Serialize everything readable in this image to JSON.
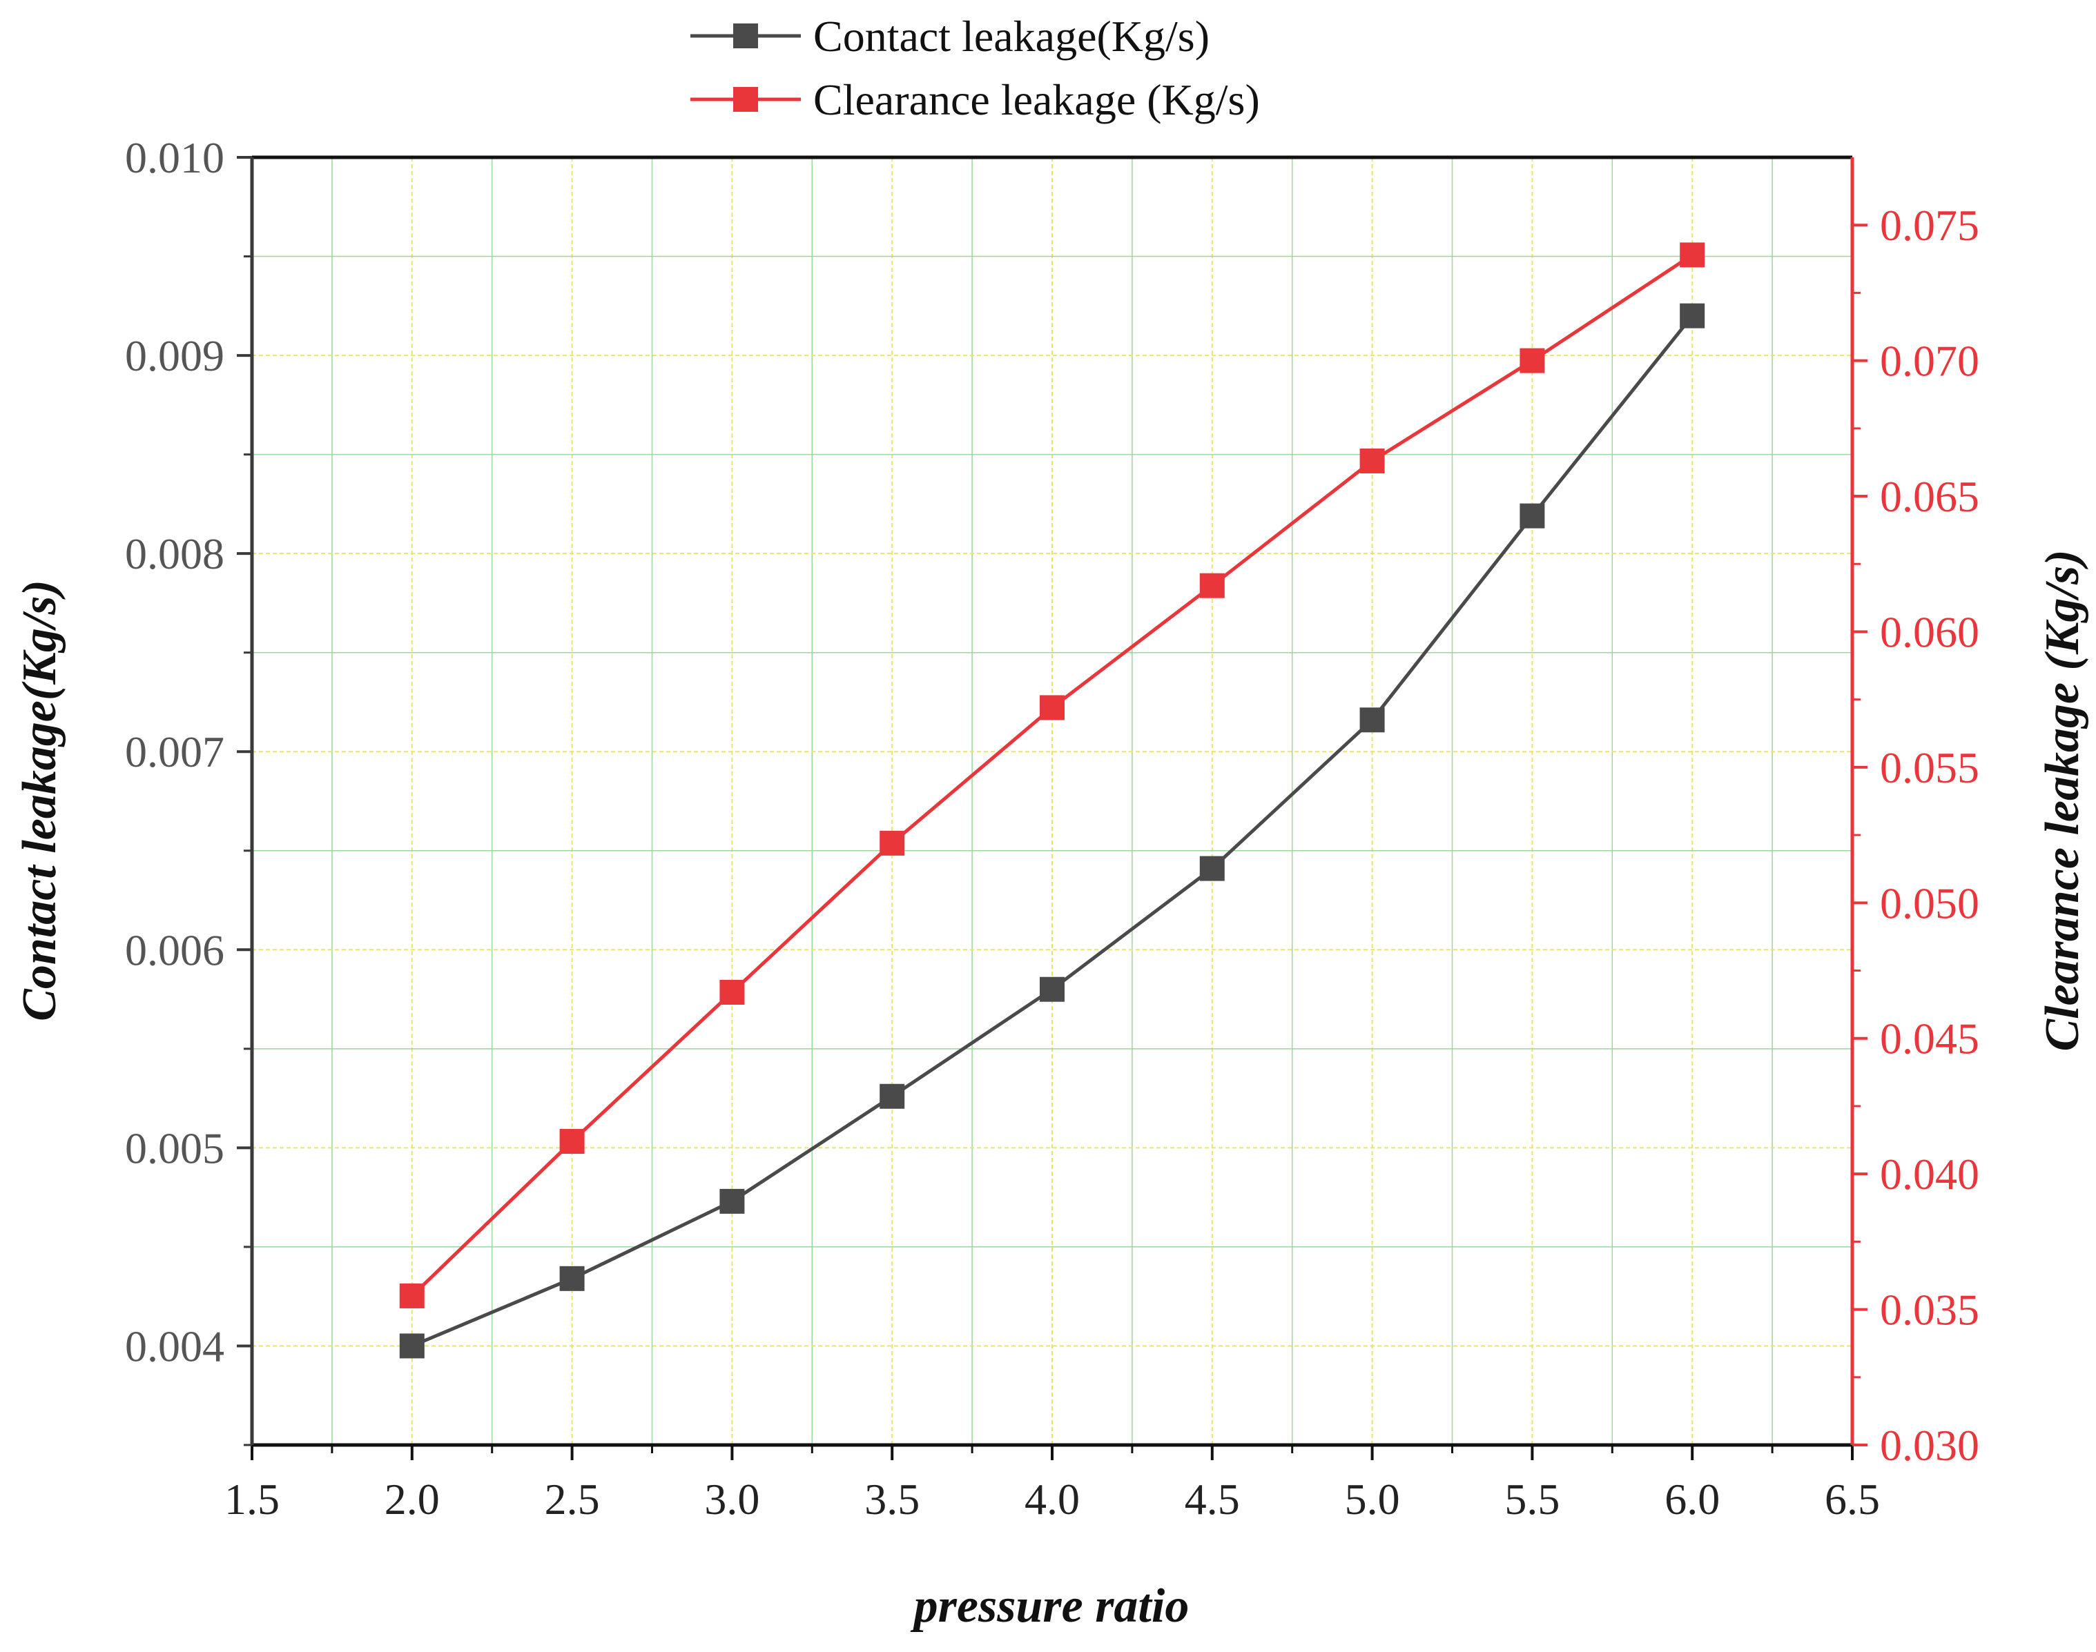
{
  "chart_data": {
    "type": "line",
    "title": "",
    "xlabel": "pressure ratio",
    "ylabel": "Contact leakage(Kg/s)",
    "y2label": "Clearance leakage (Kg/s)",
    "xlim": [
      1.5,
      6.5
    ],
    "ylim": [
      0.0035,
      0.01
    ],
    "y2lim": [
      0.03,
      0.0775
    ],
    "x_ticks": [
      "1.5",
      "2.0",
      "2.5",
      "3.0",
      "3.5",
      "4.0",
      "4.5",
      "5.0",
      "5.5",
      "6.0",
      "6.5"
    ],
    "y_ticks": [
      "0.004",
      "0.005",
      "0.006",
      "0.007",
      "0.008",
      "0.009",
      "0.010"
    ],
    "y2_ticks": [
      "0.030",
      "0.035",
      "0.040",
      "0.045",
      "0.050",
      "0.055",
      "0.060",
      "0.065",
      "0.070",
      "0.075"
    ],
    "grid": true,
    "legend_position": "top-center",
    "x": [
      2.0,
      2.5,
      3.0,
      3.5,
      4.0,
      4.5,
      5.0,
      5.5,
      6.0
    ],
    "series": [
      {
        "name": "Contact leakage(Kg/s)",
        "axis": "left",
        "color": "#4a4a4a",
        "marker": "square",
        "values": [
          0.004,
          0.00434,
          0.00473,
          0.00526,
          0.0058,
          0.00641,
          0.00716,
          0.00819,
          0.0092
        ]
      },
      {
        "name": "Clearance leakage (Kg/s)",
        "axis": "right",
        "color": "#e8363a",
        "marker": "square",
        "values": [
          0.0355,
          0.0412,
          0.0467,
          0.0522,
          0.0572,
          0.0617,
          0.0663,
          0.07,
          0.0739
        ]
      }
    ]
  },
  "colors": {
    "left_axis": "#3a3a3a",
    "right_axis": "#e8363a",
    "grid_major": "#e8e66a",
    "grid_minor": "#9ad89a"
  }
}
